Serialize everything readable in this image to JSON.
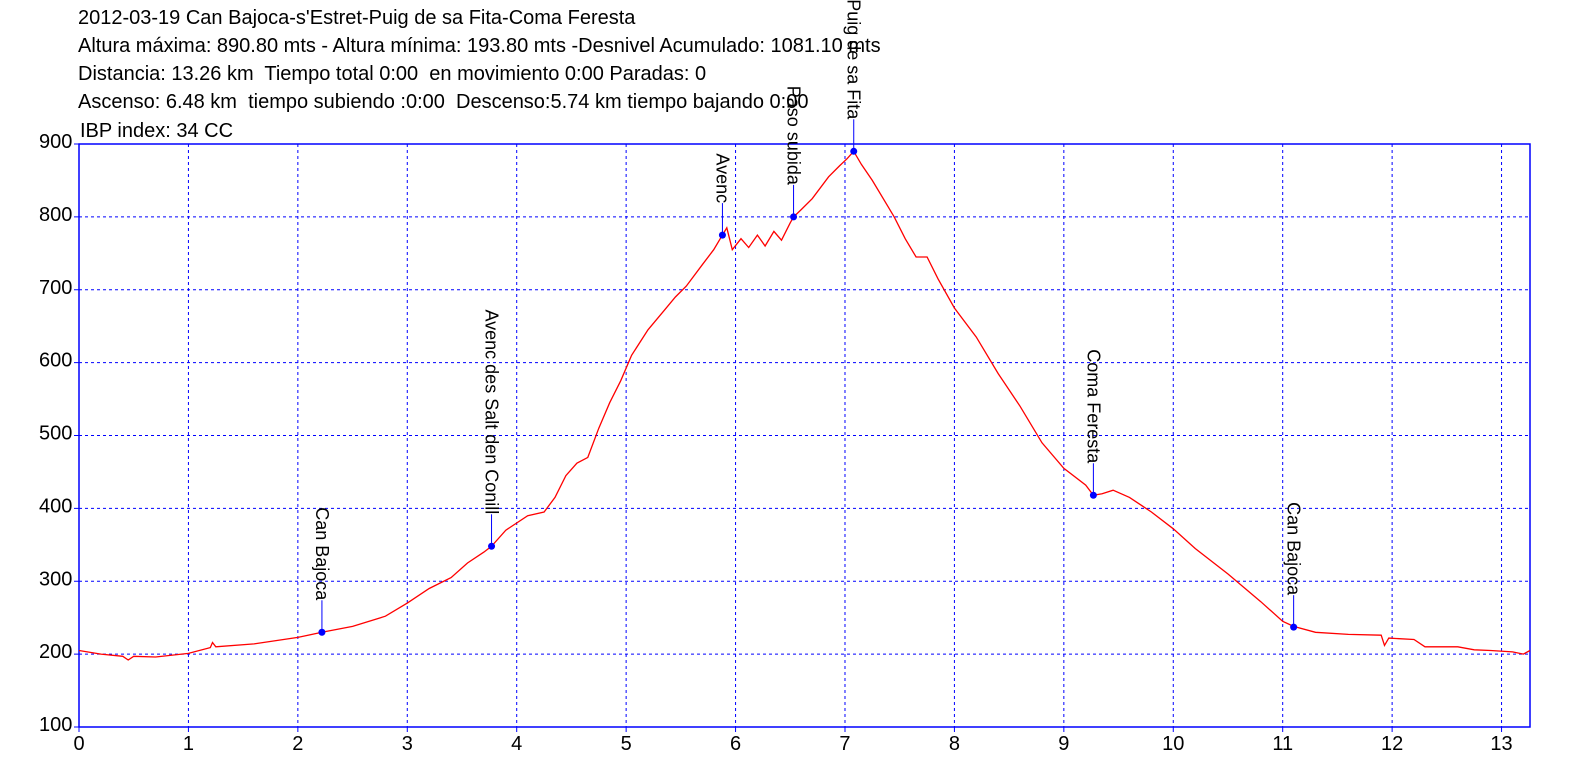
{
  "header": {
    "title": "2012-03-19 Can Bajoca-s'Estret-Puig de sa Fita-Coma Feresta",
    "line2": "Altura máxima: 890.80 mts - Altura mínima: 193.80 mts -Desnivel Acumulado: 1081.10 mts",
    "line3": "Distancia: 13.26 km  Tiempo total 0:00  en movimiento 0:00 Paradas: 0",
    "line4": "Ascenso: 6.48 km  tiempo subiendo :0:00  Descenso:5.74 km tiempo bajando 0:00",
    "line5": " IBP index: 34 CC"
  },
  "chart_data": {
    "type": "line",
    "xlim": [
      0,
      13.26
    ],
    "ylim": [
      100,
      900
    ],
    "x_ticks": [
      0,
      1,
      2,
      3,
      4,
      5,
      6,
      7,
      8,
      9,
      10,
      11,
      12,
      13
    ],
    "y_ticks": [
      100,
      200,
      300,
      400,
      500,
      600,
      700,
      800,
      900
    ],
    "grid": true,
    "colors": {
      "profile": "#ff0000",
      "waypoint": "#0000ff",
      "axes": "#0000ff",
      "grid": "#0000ff"
    },
    "profile": [
      [
        0,
        205
      ],
      [
        0.2,
        200
      ],
      [
        0.4,
        197
      ],
      [
        0.45,
        192
      ],
      [
        0.5,
        197
      ],
      [
        0.7,
        196
      ],
      [
        1.0,
        201
      ],
      [
        1.2,
        209
      ],
      [
        1.22,
        216
      ],
      [
        1.25,
        210
      ],
      [
        1.6,
        214
      ],
      [
        2.0,
        223
      ],
      [
        2.22,
        230
      ],
      [
        2.5,
        238
      ],
      [
        2.8,
        252
      ],
      [
        3.0,
        270
      ],
      [
        3.2,
        290
      ],
      [
        3.4,
        305
      ],
      [
        3.55,
        325
      ],
      [
        3.7,
        340
      ],
      [
        3.77,
        348
      ],
      [
        3.9,
        370
      ],
      [
        4.1,
        390
      ],
      [
        4.25,
        395
      ],
      [
        4.35,
        415
      ],
      [
        4.45,
        445
      ],
      [
        4.55,
        462
      ],
      [
        4.65,
        470
      ],
      [
        4.75,
        510
      ],
      [
        4.85,
        545
      ],
      [
        4.95,
        575
      ],
      [
        5.05,
        610
      ],
      [
        5.2,
        645
      ],
      [
        5.35,
        672
      ],
      [
        5.45,
        690
      ],
      [
        5.55,
        705
      ],
      [
        5.7,
        735
      ],
      [
        5.8,
        755
      ],
      [
        5.88,
        775
      ],
      [
        5.92,
        785
      ],
      [
        5.97,
        755
      ],
      [
        6.05,
        770
      ],
      [
        6.12,
        758
      ],
      [
        6.2,
        775
      ],
      [
        6.27,
        760
      ],
      [
        6.35,
        780
      ],
      [
        6.42,
        768
      ],
      [
        6.5,
        792
      ],
      [
        6.53,
        800
      ],
      [
        6.6,
        810
      ],
      [
        6.7,
        825
      ],
      [
        6.85,
        855
      ],
      [
        6.95,
        870
      ],
      [
        7.02,
        880
      ],
      [
        7.08,
        890
      ],
      [
        7.15,
        872
      ],
      [
        7.25,
        850
      ],
      [
        7.45,
        800
      ],
      [
        7.55,
        770
      ],
      [
        7.65,
        745
      ],
      [
        7.75,
        745
      ],
      [
        7.85,
        715
      ],
      [
        8.0,
        675
      ],
      [
        8.2,
        635
      ],
      [
        8.4,
        585
      ],
      [
        8.6,
        540
      ],
      [
        8.8,
        490
      ],
      [
        9.0,
        455
      ],
      [
        9.2,
        432
      ],
      [
        9.27,
        418
      ],
      [
        9.35,
        420
      ],
      [
        9.45,
        425
      ],
      [
        9.6,
        415
      ],
      [
        9.8,
        395
      ],
      [
        10.0,
        372
      ],
      [
        10.2,
        345
      ],
      [
        10.5,
        310
      ],
      [
        10.8,
        272
      ],
      [
        11.0,
        245
      ],
      [
        11.1,
        238
      ],
      [
        11.3,
        230
      ],
      [
        11.6,
        227
      ],
      [
        11.9,
        226
      ],
      [
        11.93,
        212
      ],
      [
        11.97,
        222
      ],
      [
        12.2,
        220
      ],
      [
        12.3,
        210
      ],
      [
        12.6,
        210
      ],
      [
        12.75,
        206
      ],
      [
        12.9,
        205
      ],
      [
        13.1,
        203
      ],
      [
        13.2,
        200
      ],
      [
        13.26,
        205
      ]
    ],
    "waypoints": [
      {
        "name": "Can Bajoca",
        "x": 2.22,
        "y": 230
      },
      {
        "name": "Avenc des Salt den Conill",
        "x": 3.77,
        "y": 348
      },
      {
        "name": "Avenc",
        "x": 5.88,
        "y": 775
      },
      {
        "name": "Paso subida",
        "x": 6.53,
        "y": 800
      },
      {
        "name": "Puig de sa Fita",
        "x": 7.08,
        "y": 890
      },
      {
        "name": "Coma Feresta",
        "x": 9.27,
        "y": 418
      },
      {
        "name": "Can Bajoca",
        "x": 11.1,
        "y": 237
      }
    ]
  }
}
